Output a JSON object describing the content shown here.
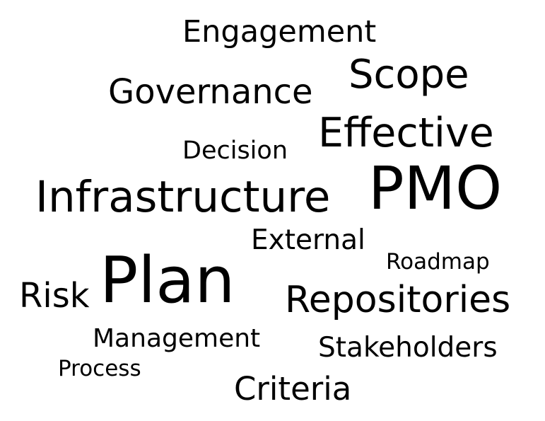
{
  "word_cloud": {
    "text_color": "#000000",
    "background_color": "#ffffff",
    "words": [
      "Engagement",
      "Scope",
      "Governance",
      "Effective",
      "Decision",
      "Infrastructure",
      "PMO",
      "External",
      "Roadmap",
      "Plan",
      "Risk",
      "Repositories",
      "Management",
      "Stakeholders",
      "Process",
      "Criteria"
    ]
  }
}
